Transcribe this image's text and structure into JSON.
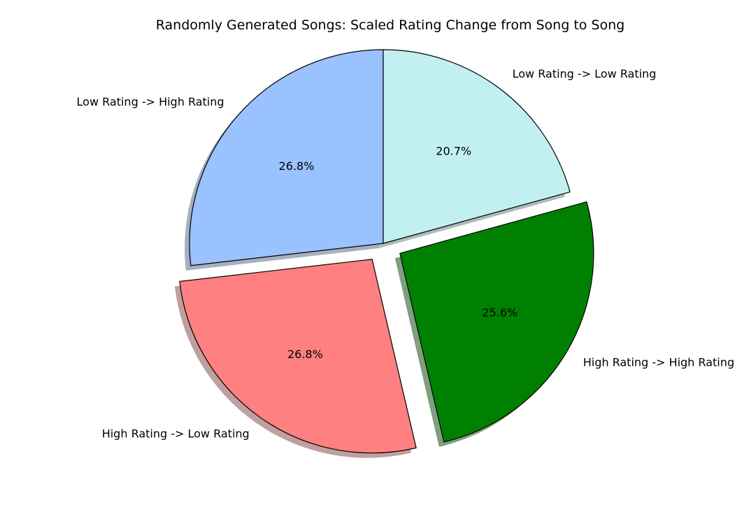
{
  "chart_data": {
    "type": "pie",
    "title": "Randomly Generated Songs: Scaled Rating Change from Song to Song",
    "start_angle_deg": 90,
    "direction": "counterclockwise",
    "shadow": true,
    "slices": [
      {
        "label": "Low Rating -> High Rating",
        "value": 26.8,
        "pct_label": "26.8%",
        "color": "#99c2ff",
        "explode": 0.0
      },
      {
        "label": "High Rating -> Low Rating",
        "value": 26.8,
        "pct_label": "26.8%",
        "color": "#ff8080",
        "explode": 0.1
      },
      {
        "label": "High Rating -> High Rating",
        "value": 25.6,
        "pct_label": "25.6%",
        "color": "#008000",
        "explode": 0.1
      },
      {
        "label": "Low Rating -> Low Rating",
        "value": 20.7,
        "pct_label": "20.7%",
        "color": "#c2f0f0",
        "explode": 0.0
      }
    ]
  }
}
